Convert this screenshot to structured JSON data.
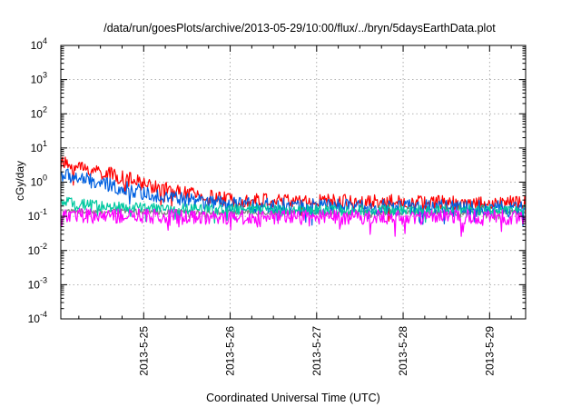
{
  "chart_data": {
    "type": "line",
    "title": "/data/run/goesPlots/archive/2013-05-29/10:00/flux/../bryn/5daysEarthData.plot",
    "xlabel": "Coordinated Universal Time (UTC)",
    "ylabel": "cGy/day",
    "yscale": "log",
    "xlim": [
      "2013-05-24T01:00",
      "2013-05-29T10:00"
    ],
    "ylim": [
      0.0001,
      10000
    ],
    "grid": true,
    "legend": "none",
    "x_ticks": [
      "2013-5-25",
      "2013-5-26",
      "2013-5-27",
      "2013-5-28",
      "2013-5-29"
    ],
    "y_ticks": [
      {
        "value": 0.0001,
        "base": "10",
        "exp": "-4"
      },
      {
        "value": 0.001,
        "base": "10",
        "exp": "-3"
      },
      {
        "value": 0.01,
        "base": "10",
        "exp": "-2"
      },
      {
        "value": 0.1,
        "base": "10",
        "exp": "-1"
      },
      {
        "value": 1,
        "base": "10",
        "exp": "0"
      },
      {
        "value": 10,
        "base": "10",
        "exp": "1"
      },
      {
        "value": 100,
        "base": "10",
        "exp": "2"
      },
      {
        "value": 1000,
        "base": "10",
        "exp": "3"
      },
      {
        "value": 10000,
        "base": "10",
        "exp": "4"
      }
    ],
    "series": [
      {
        "color": "#7f7f7f",
        "noise": 0.08,
        "x": [
          "2013-05-24T01:00",
          "2013-05-24T12:00",
          "2013-05-25T00:00",
          "2013-05-26T00:00",
          "2013-05-27T00:00",
          "2013-05-28T00:00",
          "2013-05-29T00:00",
          "2013-05-29T10:00"
        ],
        "y": [
          0.14,
          0.14,
          0.135,
          0.13,
          0.13,
          0.13,
          0.13,
          0.13
        ]
      },
      {
        "color": "#ff0000",
        "noise": 0.22,
        "x": [
          "2013-05-24T01:00",
          "2013-05-24T12:00",
          "2013-05-25T00:00",
          "2013-05-25T12:00",
          "2013-05-26T00:00",
          "2013-05-27T00:00",
          "2013-05-28T00:00",
          "2013-05-29T00:00",
          "2013-05-29T10:00"
        ],
        "y": [
          3.5,
          2.0,
          0.9,
          0.45,
          0.3,
          0.28,
          0.26,
          0.24,
          0.24
        ]
      },
      {
        "color": "#0060e0",
        "noise": 0.22,
        "x": [
          "2013-05-24T01:00",
          "2013-05-24T12:00",
          "2013-05-25T00:00",
          "2013-05-25T12:00",
          "2013-05-26T00:00",
          "2013-05-27T00:00",
          "2013-05-28T00:00",
          "2013-05-29T00:00",
          "2013-05-29T10:00"
        ],
        "y": [
          1.7,
          0.9,
          0.5,
          0.3,
          0.22,
          0.2,
          0.19,
          0.18,
          0.17
        ]
      },
      {
        "color": "#00c8a0",
        "noise": 0.16,
        "x": [
          "2013-05-24T01:00",
          "2013-05-24T12:00",
          "2013-05-25T00:00",
          "2013-05-26T00:00",
          "2013-05-27T00:00",
          "2013-05-28T00:00",
          "2013-05-29T00:00",
          "2013-05-29T10:00"
        ],
        "y": [
          0.26,
          0.2,
          0.17,
          0.16,
          0.15,
          0.15,
          0.15,
          0.15
        ]
      },
      {
        "color": "#ff00ff",
        "noise": 0.22,
        "x": [
          "2013-05-24T01:00",
          "2013-05-24T12:00",
          "2013-05-25T00:00",
          "2013-05-26T00:00",
          "2013-05-27T00:00",
          "2013-05-28T00:00",
          "2013-05-29T00:00",
          "2013-05-29T10:00"
        ],
        "y": [
          0.11,
          0.1,
          0.1,
          0.095,
          0.095,
          0.095,
          0.095,
          0.095
        ]
      }
    ]
  }
}
